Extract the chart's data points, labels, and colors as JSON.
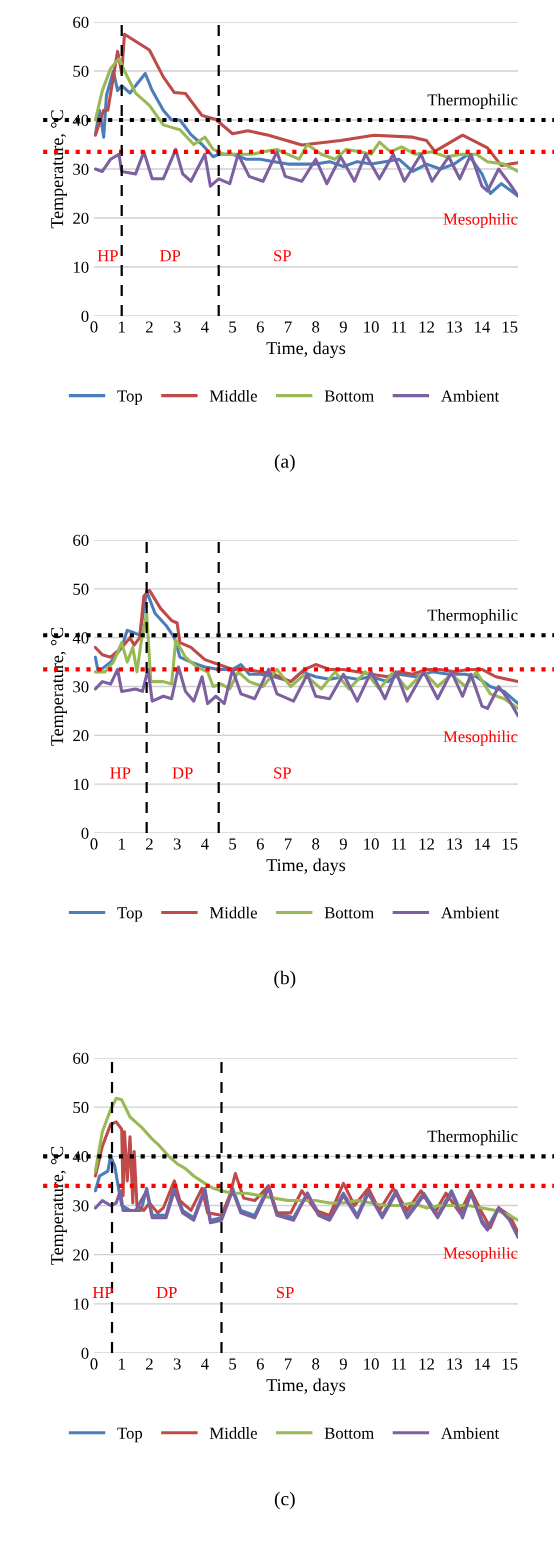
{
  "chart_data": [
    {
      "type": "line",
      "xlabel": "Time, days",
      "ylabel": "Temperature, °C",
      "xlim": [
        0,
        15.3
      ],
      "xticks": [
        0,
        1,
        2,
        3,
        4,
        5,
        6,
        7,
        8,
        9,
        10,
        11,
        12,
        13,
        14,
        15
      ],
      "ylim": [
        0,
        60
      ],
      "yticks": [
        0,
        10,
        20,
        30,
        40,
        50,
        60
      ],
      "grid": "y",
      "legend": "bottom",
      "marker": "none",
      "line_style": "solid",
      "series": [
        {
          "name": "Top",
          "color": "#4a7ebb",
          "x": [
            0.05,
            0.2,
            0.35,
            0.45,
            0.7,
            0.85,
            1.0,
            1.3,
            1.5,
            1.85,
            2.1,
            2.5,
            2.8,
            3.1,
            3.5,
            3.9,
            4.3,
            4.5,
            5.0,
            5.5,
            6,
            6.5,
            7,
            7.5,
            8,
            8.5,
            9,
            9.5,
            10,
            10.5,
            11,
            11.5,
            12,
            12.5,
            13,
            13.5,
            14,
            14.3,
            14.7,
            15.3
          ],
          "values": [
            37,
            42,
            36.5,
            45,
            50,
            46,
            47,
            45.5,
            47,
            49.5,
            46,
            42,
            40,
            40,
            37,
            35,
            32.5,
            33,
            33,
            32,
            32,
            31.5,
            31,
            31,
            31,
            31.5,
            30.5,
            31.5,
            31,
            31.5,
            32,
            29.5,
            31,
            30,
            31,
            33,
            29,
            25,
            27,
            24.5
          ]
        },
        {
          "name": "Middle",
          "color": "#be4b48",
          "x": [
            0.05,
            0.35,
            0.5,
            0.85,
            1.0,
            1.1,
            2.0,
            2.5,
            2.9,
            3.3,
            3.9,
            4.4,
            5.0,
            5.55,
            6.3,
            7.5,
            8.9,
            10.1,
            11.5,
            12.0,
            12.3,
            13.3,
            14.2,
            14.7,
            15.3
          ],
          "values": [
            36.9,
            42,
            42,
            54,
            49.6,
            57.5,
            54.3,
            48.8,
            45.6,
            45.4,
            40.9,
            40.1,
            37.2,
            37.8,
            36.9,
            34.9,
            35.8,
            36.9,
            36.5,
            35.8,
            33.6,
            36.9,
            34.3,
            30.7,
            31.3
          ]
        },
        {
          "name": "Bottom",
          "color": "#98b954",
          "x": [
            0.05,
            0.3,
            0.6,
            0.9,
            1.1,
            1.5,
            2.0,
            2.5,
            2.8,
            3.1,
            3.6,
            4.0,
            4.3,
            4.7,
            5.2,
            5.7,
            6.1,
            6.6,
            7.0,
            7.4,
            7.7,
            8.2,
            8.7,
            9.1,
            9.6,
            10.0,
            10.3,
            10.7,
            11.1,
            11.6,
            12.2,
            12.7,
            13.3,
            13.8,
            14.2,
            14.8,
            15.3
          ],
          "values": [
            40,
            46,
            50.5,
            52.5,
            50,
            45.5,
            43,
            39,
            38.5,
            38,
            35,
            36.5,
            34,
            33,
            33,
            33,
            33.5,
            34,
            33,
            32,
            35,
            33,
            32,
            34,
            33.5,
            33,
            35.5,
            33.5,
            34.5,
            33,
            33.5,
            32.5,
            33,
            33,
            31.5,
            31,
            29.5
          ]
        },
        {
          "name": "Ambient",
          "color": "#7d60a0",
          "x": [
            0.05,
            0.3,
            0.6,
            0.9,
            1.0,
            1.5,
            1.8,
            2.1,
            2.5,
            2.95,
            3.2,
            3.5,
            4.0,
            4.2,
            4.5,
            4.9,
            5.2,
            5.6,
            6.1,
            6.6,
            6.9,
            7.5,
            8.0,
            8.4,
            8.9,
            9.4,
            9.8,
            10.3,
            10.8,
            11.2,
            11.8,
            12.2,
            12.8,
            13.2,
            13.6,
            14.0,
            14.2,
            14.6,
            15.0,
            15.3
          ],
          "values": [
            30,
            29.5,
            32,
            33,
            29.5,
            29,
            33.5,
            28,
            28,
            34,
            29,
            27.5,
            33,
            26.5,
            28,
            27,
            33,
            28.5,
            27.5,
            33.5,
            28.5,
            27.5,
            32,
            27,
            32.5,
            27.5,
            33,
            28,
            33,
            27.5,
            33,
            27.5,
            32.5,
            28,
            33,
            26.5,
            25.5,
            30,
            27,
            24.5
          ]
        }
      ],
      "ref_lines": [
        {
          "axis": "y",
          "value": 40,
          "label": "Thermophilic",
          "color": "#000000",
          "line_style": "dotted"
        },
        {
          "axis": "y",
          "value": 33.5,
          "label": "Mesophilic",
          "color": "#ff0000",
          "line_style": "dotted"
        },
        {
          "axis": "x",
          "value": 1.0,
          "color": "#000000",
          "line_style": "dashed"
        },
        {
          "axis": "x",
          "value": 4.5,
          "color": "#000000",
          "line_style": "dashed"
        }
      ],
      "annotations": [
        "HP",
        "DP",
        "SP",
        "(a)"
      ]
    },
    {
      "type": "line",
      "xlabel": "Time, days",
      "ylabel": "Temperature, °C",
      "xlim": [
        0,
        15.3
      ],
      "xticks": [
        0,
        1,
        2,
        3,
        4,
        5,
        6,
        7,
        8,
        9,
        10,
        11,
        12,
        13,
        14,
        15
      ],
      "ylim": [
        0,
        60
      ],
      "yticks": [
        0,
        10,
        20,
        30,
        40,
        50,
        60
      ],
      "grid": "y",
      "legend": "bottom",
      "marker": "none",
      "line_style": "solid",
      "series": [
        {
          "name": "Top",
          "color": "#4a7ebb",
          "x": [
            0.05,
            0.15,
            0.6,
            1.0,
            1.2,
            1.45,
            1.65,
            1.9,
            2.2,
            2.6,
            2.9,
            3.1,
            3.5,
            4.0,
            4.5,
            5.0,
            5.3,
            5.6,
            6.0,
            6.5,
            7.1,
            7.5,
            8.0,
            8.5,
            9.0,
            9.5,
            10.0,
            10.6,
            11.0,
            11.6,
            12.2,
            12.8,
            13.4,
            13.8,
            14.3,
            14.8,
            15.3
          ],
          "values": [
            36,
            33,
            35,
            38,
            41.5,
            41,
            40.5,
            49.5,
            45,
            42.5,
            40,
            36,
            35,
            34,
            33.5,
            33.5,
            34.5,
            32.5,
            32.5,
            32,
            31,
            33,
            32,
            31.5,
            32,
            31.5,
            32,
            31,
            32.5,
            32,
            33,
            32.5,
            32.5,
            32,
            30,
            29,
            26.5
          ]
        },
        {
          "name": "Middle",
          "color": "#be4b48",
          "x": [
            0.05,
            0.3,
            0.6,
            1.0,
            1.3,
            1.45,
            1.65,
            1.8,
            2.0,
            2.4,
            2.8,
            3.0,
            3.1,
            3.5,
            4.0,
            4.5,
            5.0,
            5.5,
            6.0,
            6.5,
            7.1,
            7.6,
            8.0,
            8.5,
            9.0,
            9.5,
            10.0,
            10.6,
            11.0,
            11.5,
            12.0,
            12.5,
            13.0,
            13.5,
            14.0,
            14.5,
            15.3
          ],
          "values": [
            38,
            36.5,
            36,
            38,
            40,
            38.5,
            40,
            48.5,
            49.7,
            46,
            43.5,
            43,
            39,
            38,
            35.5,
            34.5,
            33.5,
            33.5,
            33,
            32.5,
            31,
            33.5,
            34.5,
            33.5,
            33.5,
            33,
            32.5,
            32,
            33,
            32.5,
            33.5,
            33.5,
            33,
            33.5,
            33.5,
            32,
            31
          ]
        },
        {
          "name": "Bottom",
          "color": "#98b954",
          "x": [
            0.05,
            0.4,
            0.7,
            1.0,
            1.2,
            1.4,
            1.55,
            1.7,
            1.9,
            2.05,
            2.5,
            2.8,
            2.95,
            3.3,
            3.7,
            4.1,
            4.3,
            4.6,
            4.9,
            5.2,
            5.6,
            6.1,
            6.6,
            7.1,
            7.6,
            8.2,
            8.7,
            9.2,
            9.8,
            10.3,
            10.8,
            11.3,
            11.9,
            12.4,
            12.9,
            13.4,
            13.8,
            14.3,
            14.8,
            15.3
          ],
          "values": [
            33,
            33,
            35,
            39,
            35,
            38,
            33,
            39,
            45,
            31,
            31,
            30.5,
            39.5,
            36,
            34,
            33,
            30,
            30.5,
            29.5,
            33,
            31,
            30,
            33.5,
            30,
            32.5,
            29.5,
            33,
            29.5,
            33,
            29.5,
            33,
            29.5,
            33,
            30,
            32.5,
            30,
            33,
            28.5,
            27.5,
            25.5
          ]
        },
        {
          "name": "Ambient",
          "color": "#7d60a0",
          "x": [
            0.05,
            0.3,
            0.6,
            0.85,
            1.0,
            1.5,
            1.75,
            1.95,
            2.1,
            2.5,
            2.8,
            3.05,
            3.3,
            3.6,
            3.9,
            4.1,
            4.4,
            4.7,
            5.0,
            5.3,
            5.8,
            6.3,
            6.6,
            7.2,
            7.7,
            8.0,
            8.5,
            9.0,
            9.5,
            10.0,
            10.5,
            10.9,
            11.3,
            11.9,
            12.4,
            12.9,
            13.3,
            13.6,
            14.0,
            14.2,
            14.6,
            15.0,
            15.3
          ],
          "values": [
            29.5,
            31,
            30.5,
            33.5,
            29,
            29.5,
            29,
            33.5,
            27,
            28,
            27.5,
            34,
            29,
            27,
            32,
            26.5,
            28,
            26.5,
            33.5,
            28.5,
            27.5,
            33.5,
            28.5,
            27,
            32.5,
            28,
            27.5,
            32.5,
            27,
            33,
            27.5,
            33,
            27,
            33,
            27.5,
            33,
            28,
            32.5,
            26,
            25.5,
            30,
            27,
            24
          ]
        }
      ],
      "ref_lines": [
        {
          "axis": "y",
          "value": 40.5,
          "label": "Thermophilic",
          "color": "#000000",
          "line_style": "dotted"
        },
        {
          "axis": "y",
          "value": 33.5,
          "label": "Mesophilic",
          "color": "#ff0000",
          "line_style": "dotted"
        },
        {
          "axis": "x",
          "value": 1.9,
          "color": "#000000",
          "line_style": "dashed"
        },
        {
          "axis": "x",
          "value": 4.5,
          "color": "#000000",
          "line_style": "dashed"
        }
      ],
      "annotations": [
        "HP",
        "DP",
        "SP",
        "(b)"
      ]
    },
    {
      "type": "line",
      "xlabel": "Time, days",
      "ylabel": "Temperature, °C",
      "xlim": [
        0,
        15.3
      ],
      "xticks": [
        0,
        1,
        2,
        3,
        4,
        5,
        6,
        7,
        8,
        9,
        10,
        11,
        12,
        13,
        14,
        15
      ],
      "ylim": [
        0,
        60
      ],
      "yticks": [
        0,
        10,
        20,
        30,
        40,
        50,
        60
      ],
      "grid": "y",
      "legend": "bottom",
      "marker": "none",
      "line_style": "solid",
      "series": [
        {
          "name": "Top",
          "color": "#4a7ebb",
          "x": [
            0.05,
            0.2,
            0.5,
            0.6,
            0.75,
            0.9,
            1.0,
            1.3,
            1.7,
            1.9,
            2.1,
            2.6,
            2.9,
            3.2,
            3.6,
            4.0,
            4.2,
            4.6,
            5.0,
            5.3,
            5.8,
            6.3,
            6.6,
            7.2,
            7.7,
            8.1,
            8.5,
            9.0,
            9.5,
            9.9,
            10.4,
            10.9,
            11.3,
            11.9,
            12.4,
            12.9,
            13.3,
            13.6,
            14.0,
            14.2,
            14.6,
            15.0,
            15.3
          ],
          "values": [
            33,
            36,
            37,
            40,
            38,
            33,
            30,
            29,
            29,
            33.5,
            28,
            28,
            34,
            29,
            27.5,
            33.5,
            27,
            27.5,
            33.5,
            29,
            28,
            34,
            28.5,
            27.5,
            32.5,
            28.5,
            27.5,
            32.5,
            28,
            33,
            28,
            33,
            28,
            32.5,
            28,
            33,
            28,
            33,
            27,
            25.5,
            29.5,
            27.5,
            24
          ]
        },
        {
          "name": "Middle",
          "color": "#be4b48",
          "x": [
            0.05,
            0.3,
            0.6,
            0.8,
            1.0,
            1.05,
            1.1,
            1.2,
            1.3,
            1.4,
            1.45,
            1.55,
            1.8,
            2.0,
            2.3,
            2.5,
            2.9,
            3.1,
            3.5,
            3.9,
            4.1,
            4.6,
            4.9,
            5.1,
            5.4,
            5.8,
            6.3,
            6.6,
            7.1,
            7.5,
            8.0,
            8.5,
            9.0,
            9.4,
            9.9,
            10.3,
            10.8,
            11.3,
            11.8,
            12.3,
            12.7,
            13.2,
            13.6,
            14.0,
            14.3,
            14.6,
            15.0,
            15.3
          ],
          "values": [
            36,
            42,
            46.5,
            47,
            45.5,
            32,
            45,
            35,
            44,
            30.5,
            41,
            30,
            29,
            30.5,
            28.5,
            29.5,
            35,
            31,
            29,
            33.5,
            28.5,
            28,
            32,
            36.5,
            31.5,
            31,
            34,
            28.5,
            28.5,
            33,
            29,
            28,
            34.5,
            30,
            33.5,
            29,
            33.5,
            29,
            33,
            28.5,
            32.5,
            28.5,
            33,
            28.5,
            25.5,
            29.5,
            28,
            24.5
          ]
        },
        {
          "name": "Bottom",
          "color": "#98b954",
          "x": [
            0.05,
            0.3,
            0.6,
            0.8,
            1.0,
            1.3,
            1.7,
            2.1,
            2.3,
            2.7,
            3.0,
            3.3,
            3.6,
            4.0,
            4.3,
            4.6,
            5.0,
            5.5,
            6.0,
            6.5,
            7.0,
            7.5,
            8.0,
            8.5,
            9.0,
            9.5,
            10.0,
            10.5,
            11.0,
            11.5,
            12.0,
            12.5,
            13.0,
            13.5,
            14.0,
            14.5,
            15.0,
            15.3
          ],
          "values": [
            37,
            45,
            49.5,
            51.8,
            51.5,
            48,
            46,
            43.5,
            42.5,
            40,
            38.5,
            37.5,
            36,
            34.5,
            33.5,
            33,
            32.5,
            32.5,
            32,
            31.5,
            31,
            31,
            31,
            30.5,
            30.5,
            31,
            30.5,
            30,
            30,
            30.5,
            29.5,
            30,
            30,
            30,
            29.5,
            29,
            28,
            27
          ]
        },
        {
          "name": "Ambient",
          "color": "#7d60a0",
          "x": [
            0.05,
            0.3,
            0.6,
            0.8,
            0.95,
            1.05,
            1.5,
            1.9,
            2.1,
            2.6,
            2.9,
            3.2,
            3.6,
            4.0,
            4.2,
            4.6,
            5.0,
            5.3,
            5.8,
            6.3,
            6.6,
            7.2,
            7.7,
            8.1,
            8.5,
            9.0,
            9.5,
            9.9,
            10.4,
            10.9,
            11.3,
            11.9,
            12.4,
            12.9,
            13.3,
            13.6,
            14.0,
            14.2,
            14.6,
            15.0,
            15.3
          ],
          "values": [
            29.5,
            31,
            30,
            30.5,
            33,
            29,
            29,
            33,
            27.5,
            27.5,
            33,
            28.5,
            27,
            33,
            26.5,
            27,
            33,
            28.5,
            27.5,
            33.5,
            28,
            27,
            32.5,
            28,
            27,
            32,
            27.5,
            32.5,
            27.5,
            32.5,
            27.5,
            32,
            27.5,
            32.5,
            27.5,
            32.5,
            26.5,
            25,
            29.5,
            27,
            23.5
          ]
        }
      ],
      "ref_lines": [
        {
          "axis": "y",
          "value": 40,
          "label": "Thermophilic",
          "color": "#000000",
          "line_style": "dotted"
        },
        {
          "axis": "y",
          "value": 34,
          "label": "Mesophilic",
          "color": "#ff0000",
          "line_style": "dotted"
        },
        {
          "axis": "x",
          "value": 0.65,
          "color": "#000000",
          "line_style": "dashed"
        },
        {
          "axis": "x",
          "value": 4.6,
          "color": "#000000",
          "line_style": "dashed"
        }
      ],
      "annotations": [
        "HP",
        "DP",
        "SP",
        "(c)"
      ]
    }
  ]
}
